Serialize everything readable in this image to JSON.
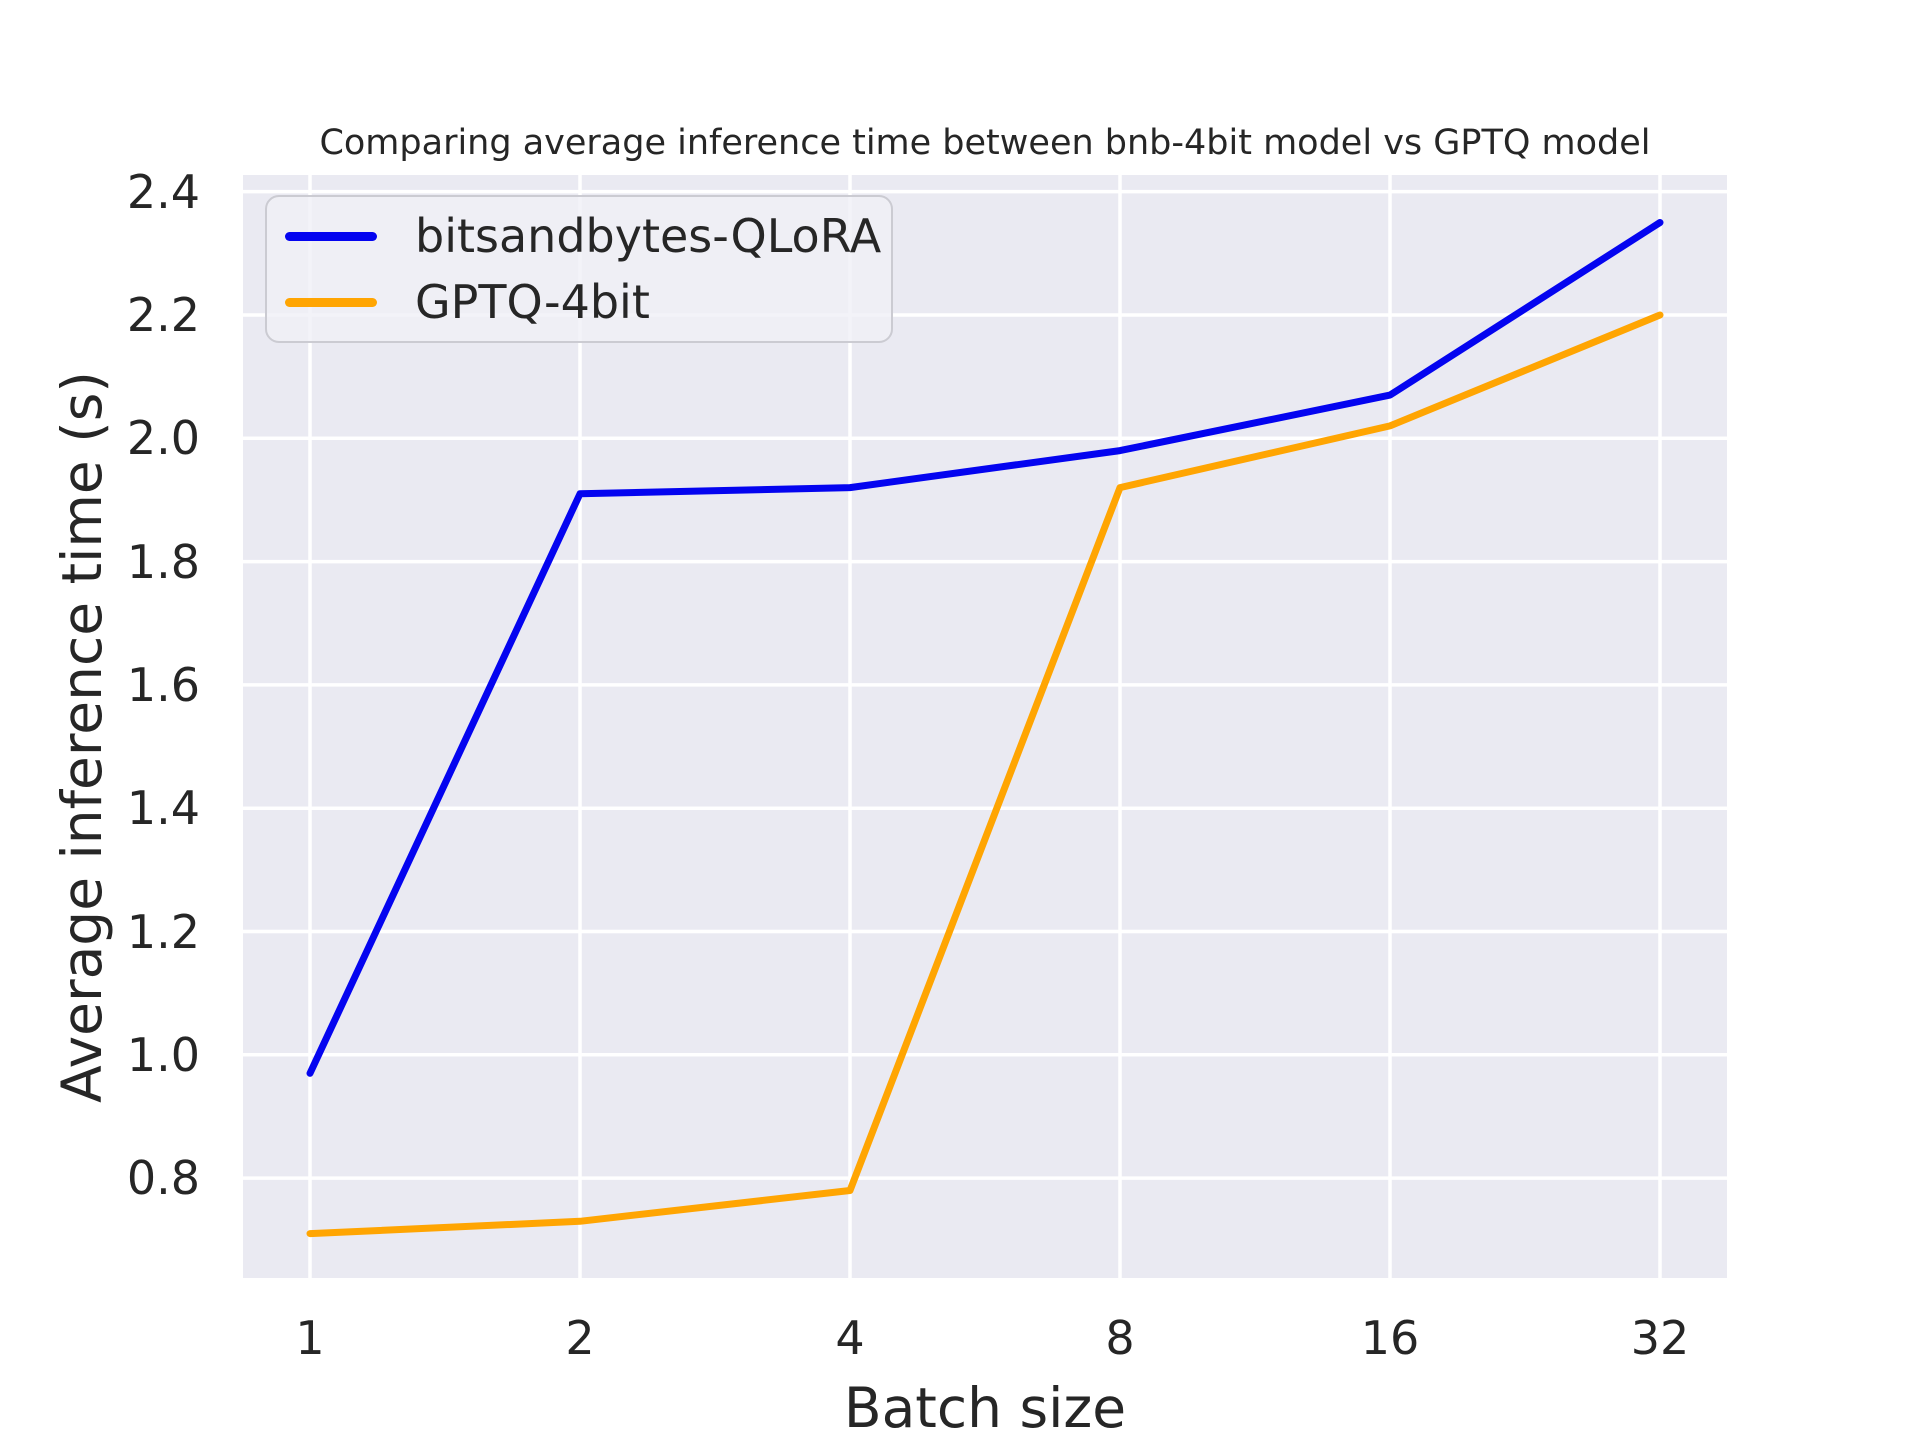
{
  "figure": {
    "background": "#ffffff",
    "axes_background": "#eaeaf2",
    "grid_color": "#ffffff",
    "text_color": "#262626"
  },
  "chart_data": {
    "type": "line",
    "title": "Comparing average inference time between bnb-4bit model vs GPTQ model",
    "xlabel": "Batch size",
    "ylabel": "Average inference time (s)",
    "categories": [
      "1",
      "2",
      "4",
      "8",
      "16",
      "32"
    ],
    "x_scale": "log2-evenly-spaced-ticks",
    "yticks": [
      "0.8",
      "1.0",
      "1.2",
      "1.4",
      "1.6",
      "1.8",
      "2.0",
      "2.2",
      "2.4"
    ],
    "ylim": [
      0.638,
      2.427
    ],
    "grid": true,
    "legend_position": "upper-left",
    "series": [
      {
        "name": "bitsandbytes-QLoRA",
        "color": "#0404f0",
        "values": [
          0.97,
          1.91,
          1.92,
          1.98,
          2.07,
          2.35
        ]
      },
      {
        "name": "GPTQ-4bit",
        "color": "#ffa502",
        "values": [
          0.71,
          0.73,
          0.78,
          1.92,
          2.02,
          2.2
        ]
      }
    ]
  }
}
